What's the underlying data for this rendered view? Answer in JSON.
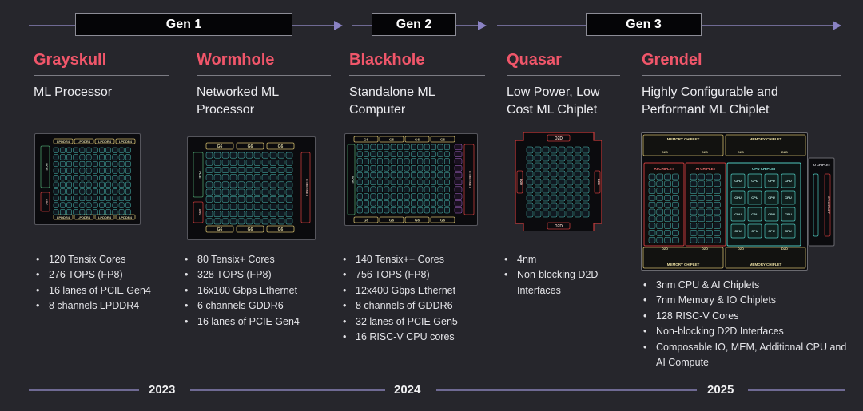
{
  "generations": [
    {
      "label": "Gen 1"
    },
    {
      "label": "Gen 2"
    },
    {
      "label": "Gen 3"
    }
  ],
  "products": [
    {
      "name": "Grayskull",
      "description": "ML Processor",
      "specs": [
        "120 Tensix Cores",
        "276 TOPS (FP8)",
        "16 lanes of PCIE Gen4",
        "8 channels LPDDR4"
      ],
      "chip_labels": {
        "mem": "LPDDR4",
        "side_left": "PCIE",
        "side_bottom": "ARC"
      }
    },
    {
      "name": "Wormhole",
      "description": "Networked ML Processor",
      "specs": [
        "80 Tensix+ Cores",
        "328 TOPS (FP8)",
        "16x100 Gbps Ethernet",
        "6 channels GDDR6",
        "16 lanes of PCIE Gen4"
      ],
      "chip_labels": {
        "mem": "G6",
        "side_left": "PCIE",
        "side_right": "ETHERNET",
        "side_bottom": "ARC"
      }
    },
    {
      "name": "Blackhole",
      "description": "Standalone ML Computer",
      "specs": [
        "140 Tensix++ Cores",
        "756 TOPS (FP8)",
        "12x400 Gbps Ethernet",
        "8 channels of GDDR6",
        "32 lanes of PCIE Gen5",
        "16 RISC-V CPU cores"
      ],
      "chip_labels": {
        "mem": "G6",
        "side_left": "PCIE",
        "side_right": "ETHERNET"
      }
    },
    {
      "name": "Quasar",
      "description": "Low Power, Low Cost ML Chiplet",
      "specs": [
        "4nm",
        "Non-blocking D2D Interfaces"
      ],
      "chip_labels": {
        "d2d": "D2D"
      }
    },
    {
      "name": "Grendel",
      "description": "Highly Configurable and Performant ML Chiplet",
      "specs": [
        "3nm CPU & AI Chiplets",
        "7nm Memory & IO Chiplets",
        "128 RISC-V Cores",
        "Non-blocking D2D Interfaces",
        "Composable IO, MEM, Additional CPU and AI Compute"
      ],
      "chip_labels": {
        "memory": "MEMORY CHIPLET",
        "ai": "AI CHIPLET",
        "cpu_chiplet": "CPU CHIPLET",
        "io": "IO CHIPLET",
        "cpu": "CPU",
        "d2d": "D2D",
        "eth": "ETHERNET"
      }
    }
  ],
  "years": [
    "2023",
    "2024",
    "2025"
  ],
  "colors": {
    "accent_name": "#f0566a",
    "timeline": "#6f6a94",
    "arrow": "#8a82c4",
    "chip_frame": "#cdb76a",
    "core_grid": "#4fc8be",
    "riscv": "#b06bd6",
    "die_red": "#c33a3a"
  }
}
